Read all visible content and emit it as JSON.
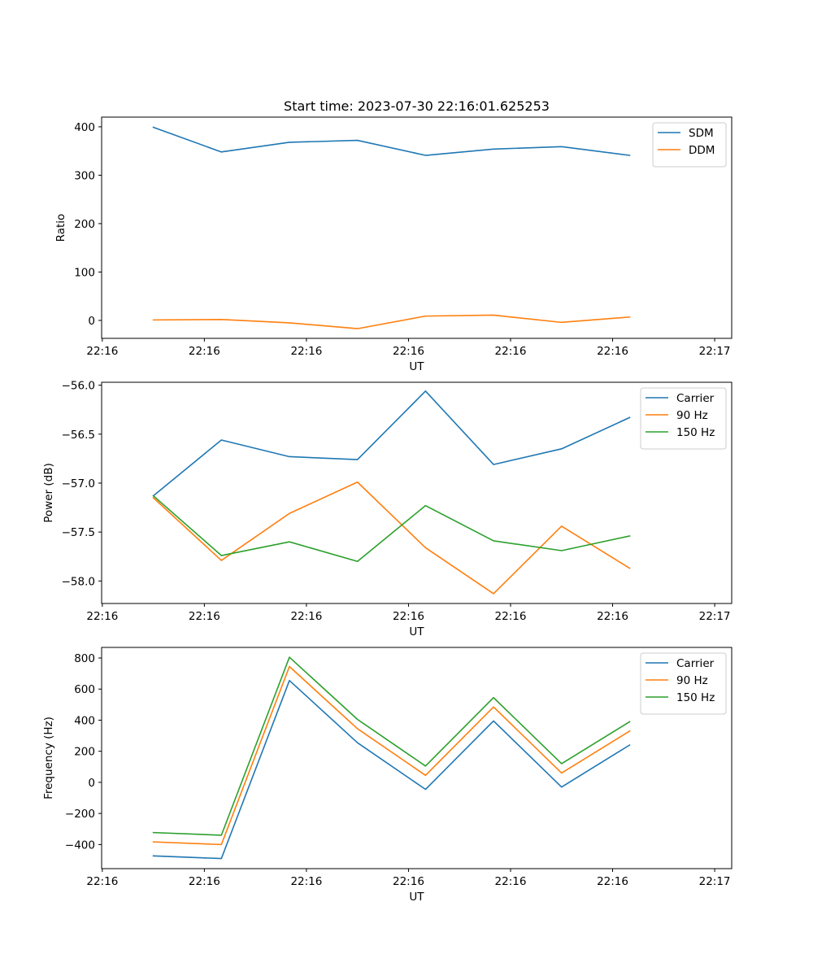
{
  "figure": {
    "title": "Start time: 2023-07-30 22:16:01.625253"
  },
  "colors": {
    "blue": "#1f77b4",
    "orange": "#ff7f0e",
    "green": "#2ca02c"
  },
  "chart_data": [
    {
      "type": "line",
      "title": "Start time: 2023-07-30 22:16:01.625253",
      "xlabel": "UT",
      "ylabel": "Ratio",
      "xlim": [
        -0.76,
        8.5
      ],
      "ylim": [
        -37,
        420
      ],
      "x": [
        0,
        1,
        2,
        3,
        4,
        5,
        6,
        7
      ],
      "xticks": [
        {
          "v": -0.75,
          "label": "22:16"
        },
        {
          "v": 0.75,
          "label": "22:16"
        },
        {
          "v": 2.25,
          "label": "22:16"
        },
        {
          "v": 3.75,
          "label": "22:16"
        },
        {
          "v": 5.25,
          "label": "22:16"
        },
        {
          "v": 6.75,
          "label": "22:16"
        },
        {
          "v": 8.25,
          "label": "22:17"
        }
      ],
      "yticks": [
        {
          "v": 0,
          "label": "0"
        },
        {
          "v": 100,
          "label": "100"
        },
        {
          "v": 200,
          "label": "200"
        },
        {
          "v": 300,
          "label": "300"
        },
        {
          "v": 400,
          "label": "400"
        }
      ],
      "legend_position": "top-right",
      "series": [
        {
          "name": "SDM",
          "color": "#1f77b4",
          "values": [
            399,
            348,
            368,
            372,
            341,
            354,
            359,
            341
          ]
        },
        {
          "name": "DDM",
          "color": "#ff7f0e",
          "values": [
            1,
            2,
            -5,
            -17,
            9,
            11,
            -4,
            7
          ]
        }
      ]
    },
    {
      "type": "line",
      "title": "",
      "xlabel": "UT",
      "ylabel": "Power (dB)",
      "xlim": [
        -0.76,
        8.5
      ],
      "ylim": [
        -58.23,
        -55.97
      ],
      "x": [
        0,
        1,
        2,
        3,
        4,
        5,
        6,
        7
      ],
      "xticks": [
        {
          "v": -0.75,
          "label": "22:16"
        },
        {
          "v": 0.75,
          "label": "22:16"
        },
        {
          "v": 2.25,
          "label": "22:16"
        },
        {
          "v": 3.75,
          "label": "22:16"
        },
        {
          "v": 5.25,
          "label": "22:16"
        },
        {
          "v": 6.75,
          "label": "22:16"
        },
        {
          "v": 8.25,
          "label": "22:17"
        }
      ],
      "yticks": [
        {
          "v": -56.0,
          "label": "−56.0"
        },
        {
          "v": -56.5,
          "label": "−56.5"
        },
        {
          "v": -57.0,
          "label": "−57.0"
        },
        {
          "v": -57.5,
          "label": "−57.5"
        },
        {
          "v": -58.0,
          "label": "−58.0"
        }
      ],
      "legend_position": "top-right",
      "series": [
        {
          "name": "Carrier",
          "color": "#1f77b4",
          "values": [
            -57.13,
            -56.56,
            -56.73,
            -56.76,
            -56.06,
            -56.81,
            -56.65,
            -56.33
          ]
        },
        {
          "name": "90 Hz",
          "color": "#ff7f0e",
          "values": [
            -57.15,
            -57.79,
            -57.31,
            -56.99,
            -57.66,
            -58.13,
            -57.44,
            -57.87
          ]
        },
        {
          "name": "150 Hz",
          "color": "#2ca02c",
          "values": [
            -57.13,
            -57.74,
            -57.6,
            -57.8,
            -57.23,
            -57.59,
            -57.69,
            -57.54
          ]
        }
      ]
    },
    {
      "type": "line",
      "title": "",
      "xlabel": "UT",
      "ylabel": "Frequency (Hz)",
      "xlim": [
        -0.76,
        8.5
      ],
      "ylim": [
        -555,
        868
      ],
      "x": [
        0,
        1,
        2,
        3,
        4,
        5,
        6,
        7
      ],
      "xticks": [
        {
          "v": -0.75,
          "label": "22:16"
        },
        {
          "v": 0.75,
          "label": "22:16"
        },
        {
          "v": 2.25,
          "label": "22:16"
        },
        {
          "v": 3.75,
          "label": "22:16"
        },
        {
          "v": 5.25,
          "label": "22:16"
        },
        {
          "v": 6.75,
          "label": "22:16"
        },
        {
          "v": 8.25,
          "label": "22:17"
        }
      ],
      "yticks": [
        {
          "v": 800,
          "label": "800"
        },
        {
          "v": 600,
          "label": "600"
        },
        {
          "v": 400,
          "label": "400"
        },
        {
          "v": 200,
          "label": "200"
        },
        {
          "v": 0,
          "label": "0"
        },
        {
          "v": -200,
          "label": "−200"
        },
        {
          "v": -400,
          "label": "−400"
        }
      ],
      "legend_position": "top-right",
      "series": [
        {
          "name": "Carrier",
          "color": "#1f77b4",
          "values": [
            -473,
            -490,
            655,
            255,
            -45,
            395,
            -30,
            240
          ]
        },
        {
          "name": "90 Hz",
          "color": "#ff7f0e",
          "values": [
            -383,
            -400,
            745,
            345,
            45,
            485,
            60,
            330
          ]
        },
        {
          "name": "150 Hz",
          "color": "#2ca02c",
          "values": [
            -323,
            -340,
            805,
            405,
            105,
            545,
            120,
            390
          ]
        }
      ]
    }
  ]
}
